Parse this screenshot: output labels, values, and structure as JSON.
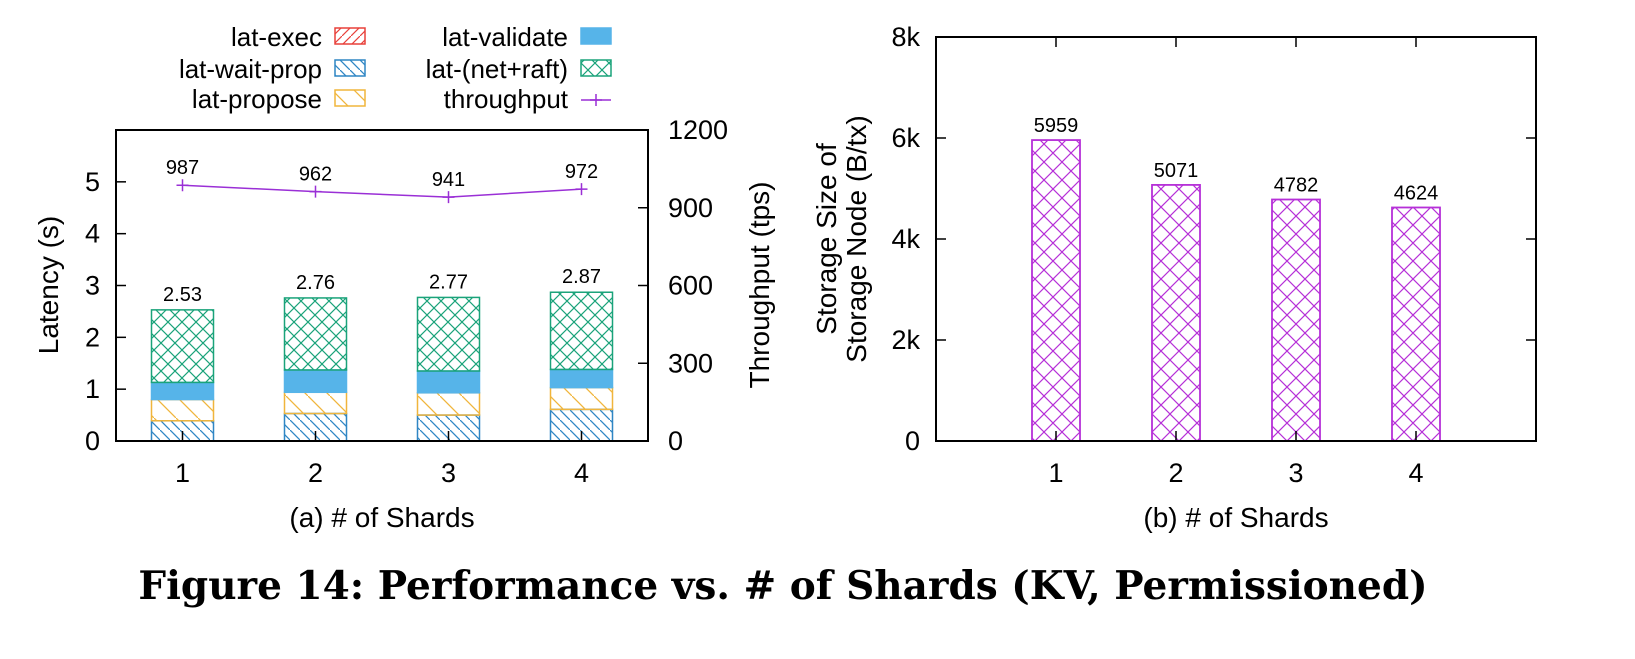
{
  "caption": "Figure 14: Performance vs. # of Shards (KV, Permissioned)",
  "colors": {
    "exec": "#e8403a",
    "wait_prop": "#2f86c4",
    "propose": "#f0b53c",
    "validate": "#56b4e9",
    "net_raft": "#1aa37a",
    "throughput": "#9a2fd6",
    "storage": "#b630d8"
  },
  "chart_data": [
    {
      "type": "bar",
      "subtype": "stacked-bar-with-line",
      "xlabel": "(a) # of Shards",
      "ylabel": "Latency (s)",
      "y2label": "Throughput (tps)",
      "categories": [
        "1",
        "2",
        "3",
        "4"
      ],
      "xlim": [
        0.5,
        4.5
      ],
      "ylim": [
        0,
        6
      ],
      "yticks": [
        0,
        1,
        2,
        3,
        4,
        5
      ],
      "y2lim": [
        0,
        1200
      ],
      "y2ticks": [
        0,
        300,
        600,
        900,
        1200
      ],
      "grid": false,
      "legend_position": "top",
      "series": [
        {
          "name": "lat-exec",
          "key": "exec",
          "pattern": "hatch-diag",
          "values": [
            0.0,
            0.0,
            0.0,
            0.0
          ]
        },
        {
          "name": "lat-wait-prop",
          "key": "wait_prop",
          "pattern": "hatch-back",
          "values": [
            0.39,
            0.53,
            0.5,
            0.61
          ]
        },
        {
          "name": "lat-propose",
          "key": "propose",
          "pattern": "hatch-back",
          "values": [
            0.41,
            0.41,
            0.43,
            0.42
          ]
        },
        {
          "name": "lat-validate",
          "key": "validate",
          "pattern": "solid",
          "values": [
            0.33,
            0.43,
            0.42,
            0.35
          ]
        },
        {
          "name": "lat-(net+raft)",
          "key": "net_raft",
          "pattern": "crosshatch",
          "values": [
            1.4,
            1.39,
            1.42,
            1.49
          ]
        }
      ],
      "totals": [
        "2.53",
        "2.76",
        "2.77",
        "2.87"
      ],
      "line": {
        "name": "throughput",
        "key": "throughput",
        "values": [
          987,
          962,
          941,
          972
        ],
        "labels": [
          "987",
          "962",
          "941",
          "972"
        ]
      },
      "tick_labels": {
        "y": [
          "0",
          "1",
          "2",
          "3",
          "4",
          "5"
        ],
        "y2": [
          "0",
          "300",
          "600",
          "900",
          "1200"
        ]
      }
    },
    {
      "type": "bar",
      "xlabel": "(b) # of Shards",
      "ylabel": "Storage Size of Storage Node (B/tx)",
      "ylabel_lines": [
        "Storage Size of",
        "Storage Node (B/tx)"
      ],
      "categories": [
        "1",
        "2",
        "3",
        "4"
      ],
      "xlim": [
        0,
        5
      ],
      "ylim": [
        0,
        8000
      ],
      "yticks": [
        0,
        2000,
        4000,
        6000,
        8000
      ],
      "tick_labels": {
        "y": [
          "0",
          "2k",
          "4k",
          "6k",
          "8k"
        ]
      },
      "grid": false,
      "values": [
        5959,
        5071,
        4782,
        4624
      ],
      "labels": [
        "5959",
        "5071",
        "4782",
        "4624"
      ]
    }
  ]
}
